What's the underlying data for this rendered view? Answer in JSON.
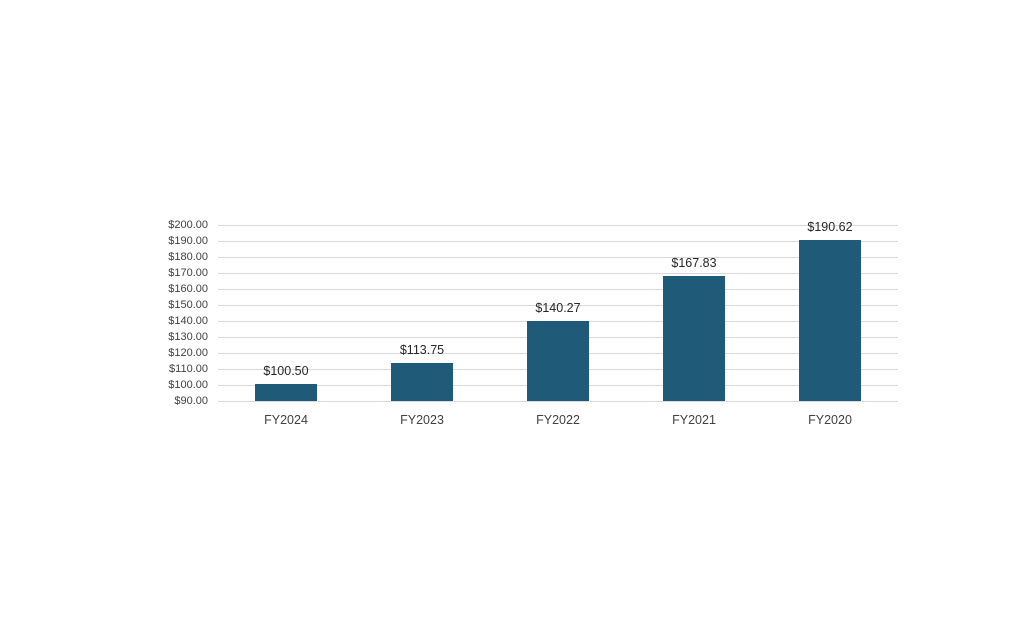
{
  "chart_data": {
    "type": "bar",
    "title": "",
    "xlabel": "",
    "ylabel": "",
    "categories": [
      "FY2024",
      "FY2023",
      "FY2022",
      "FY2021",
      "FY2020"
    ],
    "values": [
      100.5,
      113.75,
      140.27,
      167.83,
      190.62
    ],
    "data_labels": [
      "$100.50",
      "$113.75",
      "$140.27",
      "$167.83",
      "$190.62"
    ],
    "y_tick_labels": [
      "$200.00",
      "$190.00",
      "$180.00",
      "$170.00",
      "$160.00",
      "$150.00",
      "$140.00",
      "$130.00",
      "$120.00",
      "$110.00",
      "$100.00",
      "$90.00"
    ],
    "y_tick_values": [
      200,
      190,
      180,
      170,
      160,
      150,
      140,
      130,
      120,
      110,
      100,
      90
    ],
    "ylim": [
      90,
      200
    ],
    "tick_step": 10,
    "grid": true,
    "legend": false,
    "colors": {
      "bar_fill": "#1f5a78",
      "gridline": "#d9d9d9",
      "axis_text": "#404040",
      "data_label_text": "#262626",
      "background": "#ffffff"
    }
  }
}
